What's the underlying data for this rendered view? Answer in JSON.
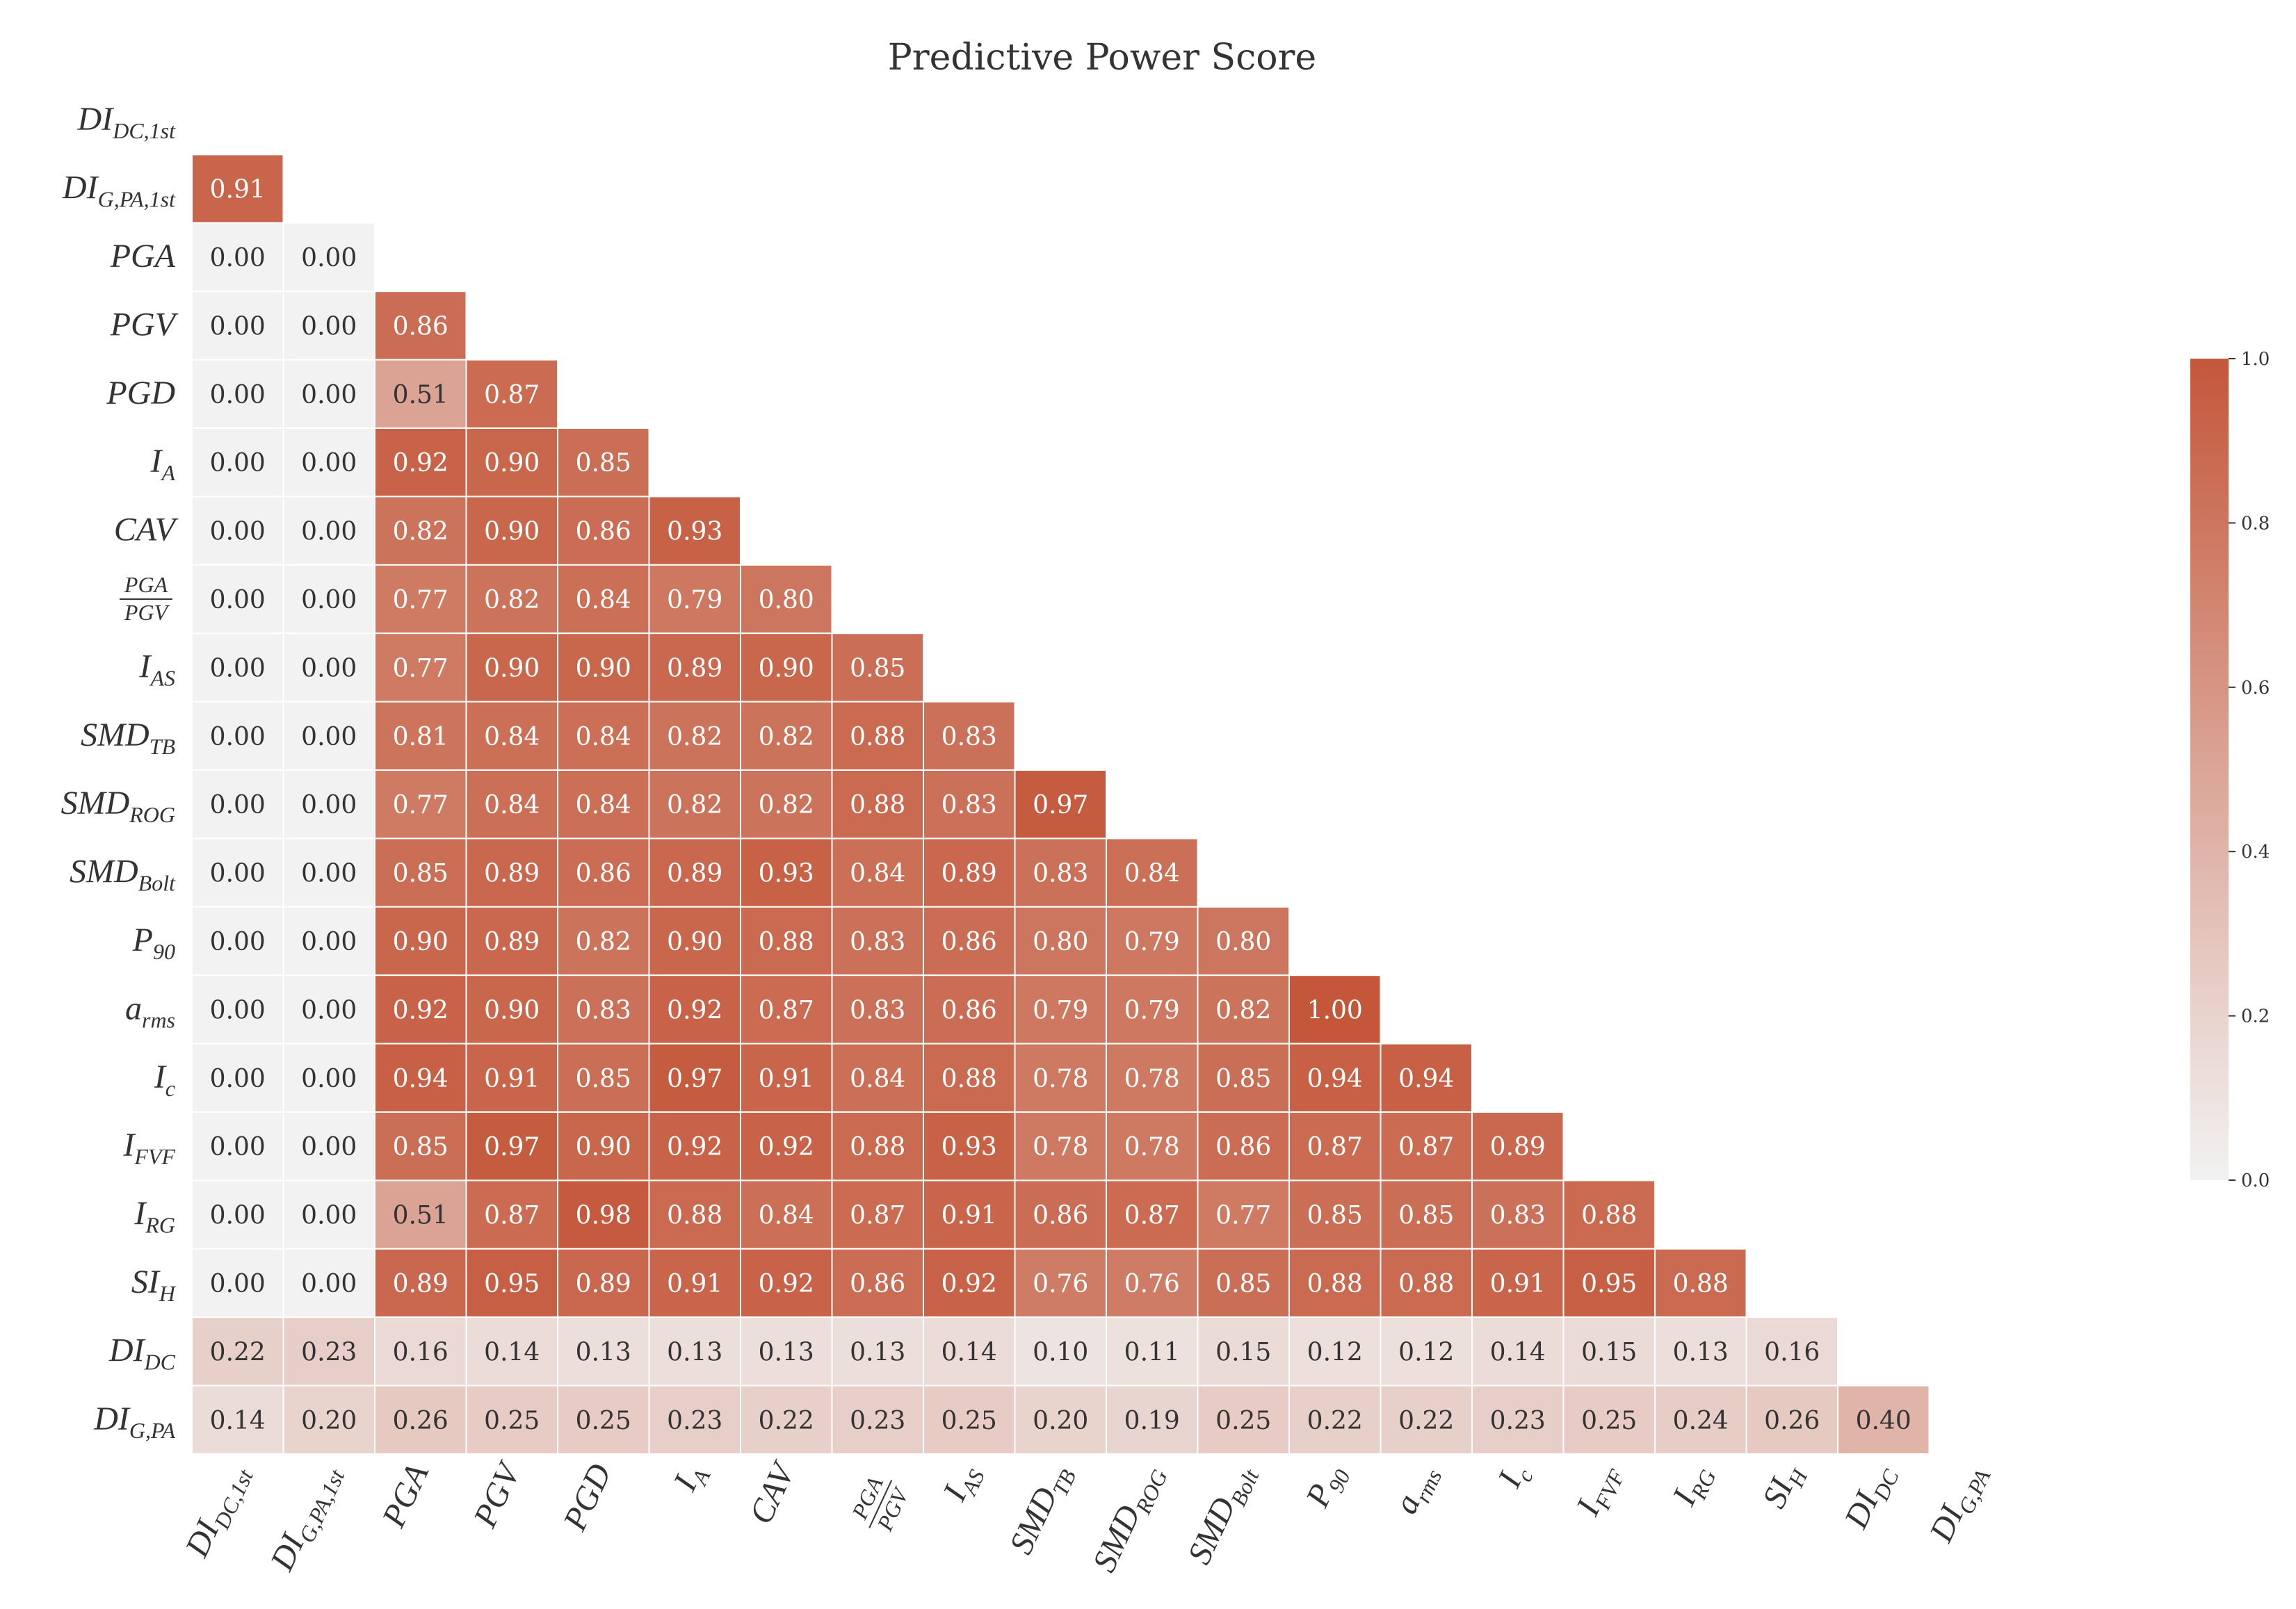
{
  "chart_data": {
    "type": "heatmap",
    "title": "Predictive Power Score",
    "row_labels": [
      {
        "base": "DI",
        "sub": "DC,1st"
      },
      {
        "base": "DI",
        "sub": "G,PA,1st"
      },
      {
        "base": "PGA",
        "sub": ""
      },
      {
        "base": "PGV",
        "sub": ""
      },
      {
        "base": "PGD",
        "sub": ""
      },
      {
        "base": "I",
        "sub": "A"
      },
      {
        "base": "CAV",
        "sub": ""
      },
      {
        "base": "PGA/PGV",
        "sub": "",
        "fraction": true,
        "num": "PGA",
        "den": "PGV"
      },
      {
        "base": "I",
        "sub": "AS"
      },
      {
        "base": "SMD",
        "sub": "TB"
      },
      {
        "base": "SMD",
        "sub": "ROG"
      },
      {
        "base": "SMD",
        "sub": "Bolt"
      },
      {
        "base": "P",
        "sub": "90"
      },
      {
        "base": "a",
        "sub": "rms"
      },
      {
        "base": "I",
        "sub": "c"
      },
      {
        "base": "I",
        "sub": "FVF"
      },
      {
        "base": "I",
        "sub": "RG"
      },
      {
        "base": "SI",
        "sub": "H"
      },
      {
        "base": "DI",
        "sub": "DC"
      },
      {
        "base": "DI",
        "sub": "G,PA"
      }
    ],
    "values": [
      [],
      [
        0.91
      ],
      [
        0.0,
        0.0
      ],
      [
        0.0,
        0.0,
        0.86
      ],
      [
        0.0,
        0.0,
        0.51,
        0.87
      ],
      [
        0.0,
        0.0,
        0.92,
        0.9,
        0.85
      ],
      [
        0.0,
        0.0,
        0.82,
        0.9,
        0.86,
        0.93
      ],
      [
        0.0,
        0.0,
        0.77,
        0.82,
        0.84,
        0.79,
        0.8
      ],
      [
        0.0,
        0.0,
        0.77,
        0.9,
        0.9,
        0.89,
        0.9,
        0.85
      ],
      [
        0.0,
        0.0,
        0.81,
        0.84,
        0.84,
        0.82,
        0.82,
        0.88,
        0.83
      ],
      [
        0.0,
        0.0,
        0.77,
        0.84,
        0.84,
        0.82,
        0.82,
        0.88,
        0.83,
        0.97
      ],
      [
        0.0,
        0.0,
        0.85,
        0.89,
        0.86,
        0.89,
        0.93,
        0.84,
        0.89,
        0.83,
        0.84
      ],
      [
        0.0,
        0.0,
        0.9,
        0.89,
        0.82,
        0.9,
        0.88,
        0.83,
        0.86,
        0.8,
        0.79,
        0.8
      ],
      [
        0.0,
        0.0,
        0.92,
        0.9,
        0.83,
        0.92,
        0.87,
        0.83,
        0.86,
        0.79,
        0.79,
        0.82,
        1.0
      ],
      [
        0.0,
        0.0,
        0.94,
        0.91,
        0.85,
        0.97,
        0.91,
        0.84,
        0.88,
        0.78,
        0.78,
        0.85,
        0.94,
        0.94
      ],
      [
        0.0,
        0.0,
        0.85,
        0.97,
        0.9,
        0.92,
        0.92,
        0.88,
        0.93,
        0.78,
        0.78,
        0.86,
        0.87,
        0.87,
        0.89
      ],
      [
        0.0,
        0.0,
        0.51,
        0.87,
        0.98,
        0.88,
        0.84,
        0.87,
        0.91,
        0.86,
        0.87,
        0.77,
        0.85,
        0.85,
        0.83,
        0.88
      ],
      [
        0.0,
        0.0,
        0.89,
        0.95,
        0.89,
        0.91,
        0.92,
        0.86,
        0.92,
        0.76,
        0.76,
        0.85,
        0.88,
        0.88,
        0.91,
        0.95,
        0.88
      ],
      [
        0.22,
        0.23,
        0.16,
        0.14,
        0.13,
        0.13,
        0.13,
        0.13,
        0.14,
        0.1,
        0.11,
        0.15,
        0.12,
        0.12,
        0.14,
        0.15,
        0.13,
        0.16
      ],
      [
        0.14,
        0.2,
        0.26,
        0.25,
        0.25,
        0.23,
        0.22,
        0.23,
        0.25,
        0.2,
        0.19,
        0.25,
        0.22,
        0.22,
        0.23,
        0.25,
        0.24,
        0.26,
        0.4
      ]
    ],
    "value_format": "2 decimals",
    "mask": "upper triangle incl. diagonal",
    "colorbar": {
      "range": [
        0.0,
        1.0
      ],
      "ticks": [
        "0.0",
        "0.2",
        "0.4",
        "0.6",
        "0.8",
        "1.0"
      ],
      "low_color": "#f2f2f2",
      "high_color": "#c4573a"
    },
    "grid": false
  }
}
